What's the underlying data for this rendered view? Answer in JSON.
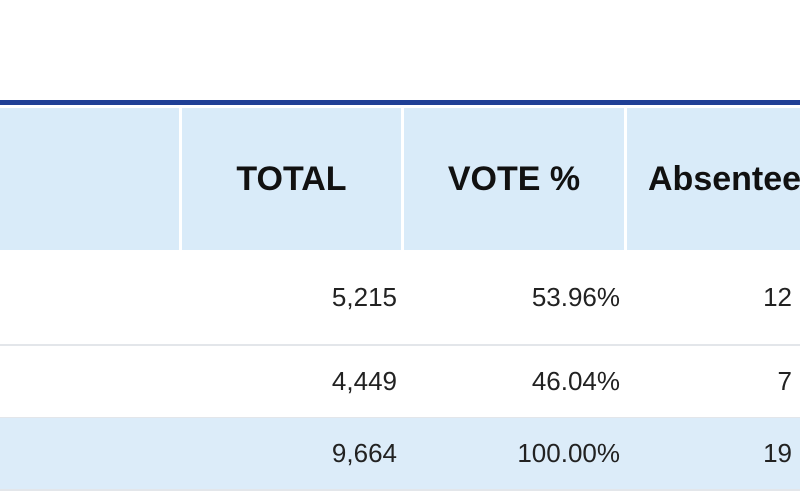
{
  "table": {
    "headers": [
      "TOTAL",
      "VOTE %",
      "Absentee"
    ],
    "rows": [
      [
        "5,215",
        "53.96%",
        "12"
      ],
      [
        "4,449",
        "46.04%",
        "7"
      ],
      [
        "9,664",
        "100.00%",
        "19"
      ]
    ]
  }
}
